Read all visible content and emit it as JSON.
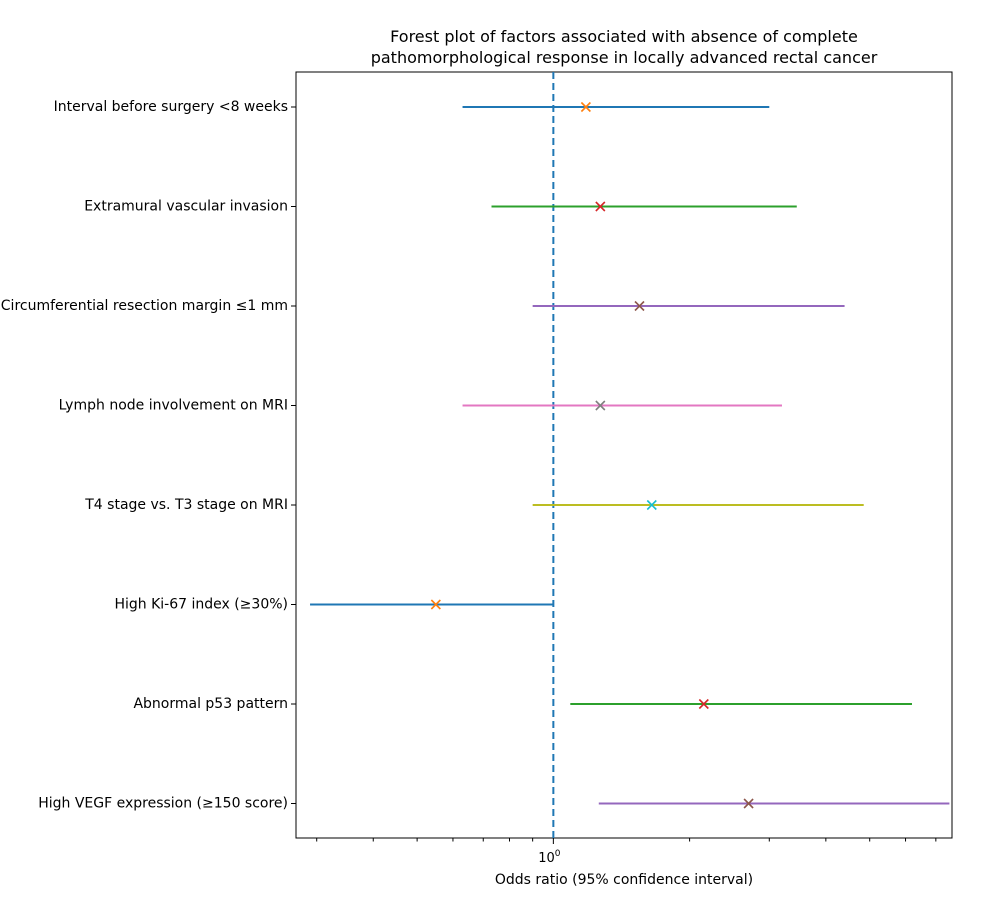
{
  "chart_data": {
    "type": "forest",
    "title_lines": [
      "Forest plot of factors associated with absence of complete",
      "pathomorphological response in locally advanced rectal cancer"
    ],
    "xlabel": "Odds ratio (95% confidence interval)",
    "xscale": "log",
    "xlim": [
      0.27,
      7.6
    ],
    "reference_line": 1.0,
    "xtick_label": {
      "base": "10",
      "exponent": "0"
    },
    "factors": [
      {
        "label": "Interval before surgery <8 weeks",
        "or": 1.18,
        "lower": 0.63,
        "upper": 3.0,
        "line_color": "#1f77b4",
        "marker_color": "#ff7f0e"
      },
      {
        "label": "Extramural vascular invasion",
        "or": 1.27,
        "lower": 0.73,
        "upper": 3.45,
        "line_color": "#2ca02c",
        "marker_color": "#d62728"
      },
      {
        "label": "Circumferential resection margin ≤1 mm",
        "or": 1.55,
        "lower": 0.9,
        "upper": 4.4,
        "line_color": "#9467bd",
        "marker_color": "#8c564b"
      },
      {
        "label": "Lymph node involvement on MRI",
        "or": 1.27,
        "lower": 0.63,
        "upper": 3.2,
        "line_color": "#e377c2",
        "marker_color": "#7f7f7f"
      },
      {
        "label": "T4 stage vs. T3 stage on MRI",
        "or": 1.65,
        "lower": 0.9,
        "upper": 4.85,
        "line_color": "#bcbd22",
        "marker_color": "#17becf"
      },
      {
        "label": "High Ki-67 index (≥30%)",
        "or": 0.55,
        "lower": 0.29,
        "upper": 1.0,
        "line_color": "#1f77b4",
        "marker_color": "#ff7f0e"
      },
      {
        "label": "Abnormal p53 pattern",
        "or": 2.15,
        "lower": 1.09,
        "upper": 6.2,
        "line_color": "#2ca02c",
        "marker_color": "#d62728"
      },
      {
        "label": "High VEGF expression (≥150 score)",
        "or": 2.7,
        "lower": 1.26,
        "upper": 7.5,
        "line_color": "#9467bd",
        "marker_color": "#8c564b"
      }
    ]
  }
}
